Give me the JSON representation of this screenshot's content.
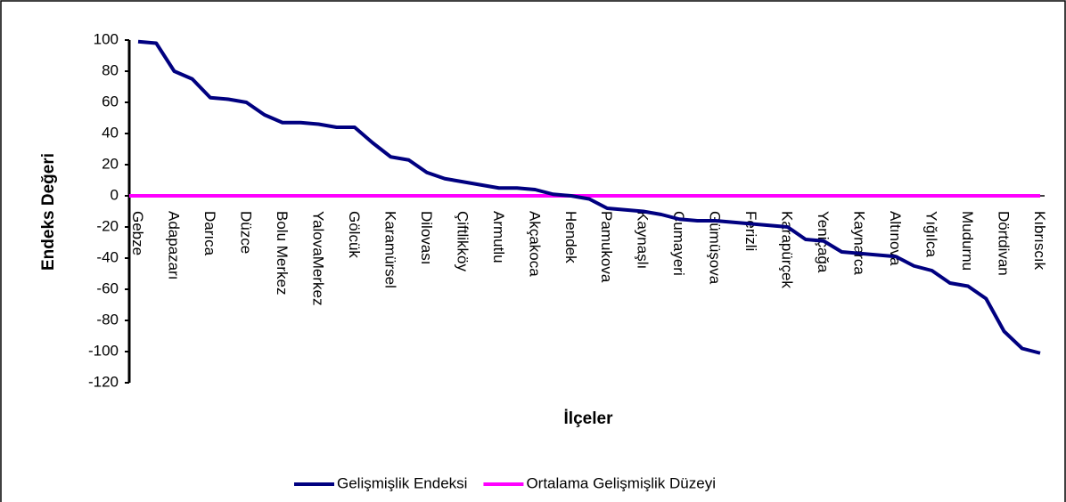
{
  "chart_data": {
    "type": "line",
    "x_label": "İlçeler",
    "y_label": "Endeks Değeri",
    "categories": [
      "Gebze",
      null,
      "Adapazarı",
      null,
      "Darıca",
      null,
      "Düzce",
      null,
      "Bolu Merkez",
      null,
      "YalovaMerkez",
      null,
      "Gölcük",
      null,
      "Karamürsel",
      null,
      "Dilovası",
      null,
      "Çiftlikköy",
      null,
      "Armutlu",
      null,
      "Akçakoca",
      null,
      "Hendek",
      null,
      "Pamukova",
      null,
      "Kaynaşlı",
      null,
      "Çumayeri",
      null,
      "Gümüşova",
      null,
      "Ferizli",
      null,
      "Karapürçek",
      null,
      "Yeniçağa",
      null,
      "Kaynarca",
      null,
      "Altınova",
      null,
      "Yığılca",
      null,
      "Mudurnu",
      null,
      "Dörtdivan",
      null,
      "Kıbrıscık"
    ],
    "series": [
      {
        "name": "Gelişmişlik Endeksi",
        "color": "#000080",
        "values": [
          99,
          98,
          80,
          75,
          63,
          62,
          60,
          52,
          47,
          47,
          46,
          44,
          44,
          34,
          25,
          23,
          15,
          11,
          9,
          7,
          5,
          5,
          4,
          1,
          0,
          -2,
          -8,
          -9,
          -10,
          -12,
          -15,
          -16,
          -16,
          -17,
          -18,
          -19,
          -20,
          -28,
          -29,
          -36,
          -37,
          -38,
          -39,
          -45,
          -48,
          -56,
          -58,
          -66,
          -87,
          -98,
          -101
        ]
      },
      {
        "name": "Ortalama Gelişmişlik Düzeyi",
        "color": "#ff00ff",
        "values": [
          0,
          0,
          0,
          0,
          0,
          0,
          0,
          0,
          0,
          0,
          0,
          0,
          0,
          0,
          0,
          0,
          0,
          0,
          0,
          0,
          0,
          0,
          0,
          0,
          0,
          0,
          0,
          0,
          0,
          0,
          0,
          0,
          0,
          0,
          0,
          0,
          0,
          0,
          0,
          0,
          0,
          0,
          0,
          0,
          0,
          0,
          0,
          0,
          0,
          0,
          0
        ]
      }
    ],
    "ylim": [
      -120,
      100
    ],
    "yticks": [
      -120,
      -100,
      -80,
      -60,
      -40,
      -20,
      0,
      20,
      40,
      60,
      80,
      100
    ]
  }
}
